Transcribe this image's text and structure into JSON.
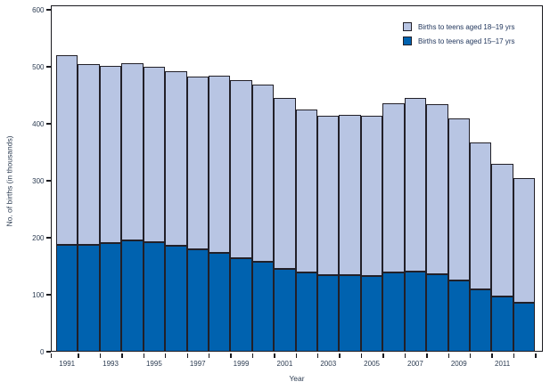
{
  "figure": {
    "y_axis_title": "No. of births (in thousands)",
    "x_axis_title": "Year"
  },
  "legend": [
    {
      "name": "births-18-19",
      "label": "Births to teens aged 18–19 yrs",
      "color": "#b8c5e3"
    },
    {
      "name": "births-15-17",
      "label": "Births to teens aged 15–17 yrs",
      "color": "#0062af"
    }
  ],
  "colors": {
    "light_blue_18_19": "#b8c5e3",
    "dark_blue_15_17": "#0062af",
    "bar_border": "#222028",
    "axis": "#1a1a1f",
    "text": "#2c3c52"
  },
  "chart_data": {
    "type": "bar",
    "stacked": true,
    "title": "",
    "xlabel": "Year",
    "ylabel": "No. of births (in thousands)",
    "ylim": [
      0,
      600
    ],
    "y_ticks": [
      0,
      100,
      200,
      300,
      400,
      500,
      600
    ],
    "categories": [
      1991,
      1992,
      1993,
      1994,
      1995,
      1996,
      1997,
      1998,
      1999,
      2000,
      2001,
      2002,
      2003,
      2004,
      2005,
      2006,
      2007,
      2008,
      2009,
      2010,
      2011,
      2012
    ],
    "x_tick_labels": [
      "1991",
      "1993",
      "1995",
      "1997",
      "1999",
      "2001",
      "2003",
      "2005",
      "2007",
      "2009",
      "2011"
    ],
    "series": [
      {
        "name": "Births to teens aged 15–17 yrs",
        "color": "#0062af",
        "values": [
          188.2,
          187.5,
          190.5,
          195.2,
          192.5,
          185.7,
          180.2,
          173.2,
          163.6,
          157.2,
          145.3,
          138.6,
          134.4,
          134.0,
          133.2,
          138.9,
          140.6,
          135.7,
          124.7,
          109.2,
          97.6,
          86.4
        ]
      },
      {
        "name": "Births to teens aged 18–19 yrs",
        "color": "#b8c5e3",
        "values": [
          331.4,
          317.9,
          310.6,
          310.3,
          307.4,
          305.9,
          303.0,
          311.7,
          312.9,
          311.8,
          300.6,
          286.8,
          280.2,
          281.3,
          281.4,
          296.5,
          304.4,
          299.1,
          285.2,
          258.6,
          232.2,
          219.0
        ]
      }
    ],
    "legend_position": "top-right",
    "grid": false
  }
}
